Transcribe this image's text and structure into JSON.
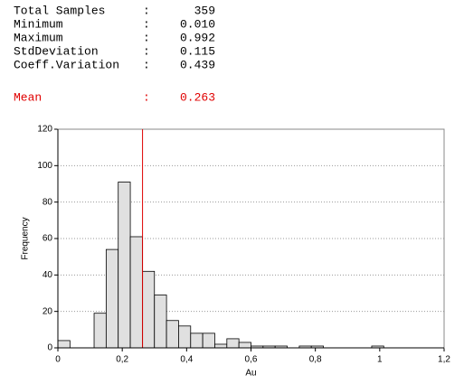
{
  "separator": ":",
  "stats": [
    {
      "label": "Total Samples",
      "value": 359
    },
    {
      "label": "Minimum",
      "value": "0.010"
    },
    {
      "label": "Maximum",
      "value": 0.992
    },
    {
      "label": "StdDeviation",
      "value": 0.115
    },
    {
      "label": "Coeff.Variation",
      "value": 0.439
    }
  ],
  "mean": {
    "label": "Mean",
    "value": 0.263,
    "color": "#e00000"
  },
  "chart_data": {
    "type": "histogram",
    "xlabel": "Au",
    "ylabel": "Frequency",
    "bins": [
      0,
      0.0375,
      0.075,
      0.1125,
      0.15,
      0.1875,
      0.225,
      0.2625,
      0.3,
      0.3375,
      0.375,
      0.4125,
      0.45,
      0.4875,
      0.525,
      0.5625,
      0.6,
      0.6375,
      0.675,
      0.7125,
      0.75,
      0.7875,
      0.825,
      0.8625,
      0.9,
      0.9375,
      0.975,
      1.0125
    ],
    "values": [
      4,
      0,
      0,
      19,
      54,
      91,
      61,
      42,
      29,
      15,
      12,
      8,
      8,
      2,
      5,
      3,
      1,
      1,
      1,
      0,
      1,
      1,
      0,
      0,
      0,
      0,
      1
    ],
    "color": "#e0e0e0",
    "xlim": [
      0,
      1.2
    ],
    "xticks": [
      0,
      {
        "value": 0.2,
        "label": "0,2"
      },
      {
        "value": 0.4,
        "label": "0,4"
      },
      {
        "value": 0.6,
        "label": "0,6"
      },
      {
        "value": 0.8,
        "label": "0,8"
      },
      1,
      {
        "value": 1.2,
        "label": "1,2"
      }
    ],
    "ylim": [
      0,
      120
    ],
    "yticks": [
      0,
      20,
      40,
      60,
      80,
      100,
      120
    ],
    "grid": true
  }
}
